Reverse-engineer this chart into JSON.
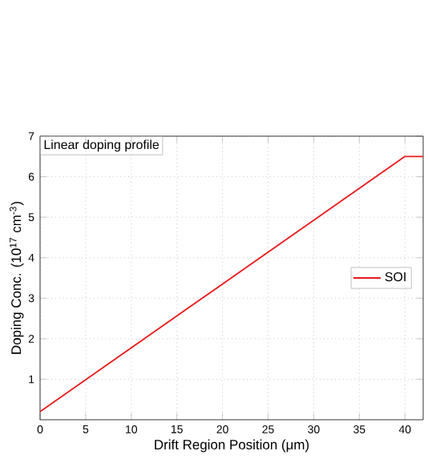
{
  "chart_data": {
    "type": "line",
    "xlabel": "Drift Region Position  (μm)",
    "ylabel": "Doping Conc. (10$^{17}$ cm$^{-3}$)",
    "annotations": [
      "Linear doping profile"
    ],
    "x": [
      0,
      40,
      42
    ],
    "series": [
      {
        "name": "SOI",
        "color": "#e8191c",
        "values": [
          0.2,
          6.5,
          6.5
        ]
      }
    ],
    "xlim": [
      0,
      42
    ],
    "ylim": [
      0,
      7
    ],
    "xticks": [
      0,
      5,
      10,
      15,
      20,
      25,
      30,
      35,
      40
    ],
    "yticks": [
      1,
      2,
      3,
      4,
      5,
      6,
      7
    ],
    "grid": true,
    "legend": "right",
    "marker": "none",
    "line_style": "solid"
  }
}
